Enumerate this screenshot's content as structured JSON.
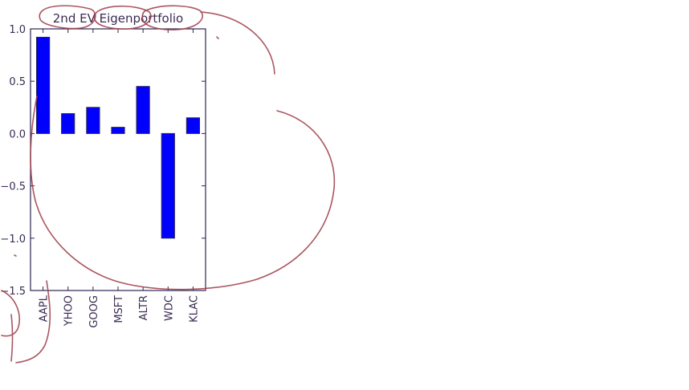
{
  "chart_data": {
    "type": "bar",
    "title": "2nd EV Eigenportfolio",
    "xlabel": "",
    "ylabel": "",
    "categories": [
      "AAPL",
      "YHOO",
      "GOOG",
      "MSFT",
      "ALTR",
      "WDC",
      "KLAC"
    ],
    "values": [
      0.92,
      0.19,
      0.25,
      0.06,
      0.45,
      -1.0,
      0.15
    ],
    "ylim": [
      -1.5,
      1.0
    ],
    "yticks": [
      1.0,
      0.5,
      0.0,
      -0.5,
      -1.0,
      -1.5
    ],
    "ytick_labels": [
      "1.0",
      "0.5",
      "0.0",
      "−0.5",
      "−1.0",
      "−1.5"
    ],
    "grid": false,
    "legend": "none",
    "colors": {
      "bar": "#0000ff",
      "bar_edge": "#2d2452",
      "axes": "#2d2452",
      "annotation_ink": "#a2444f"
    }
  }
}
